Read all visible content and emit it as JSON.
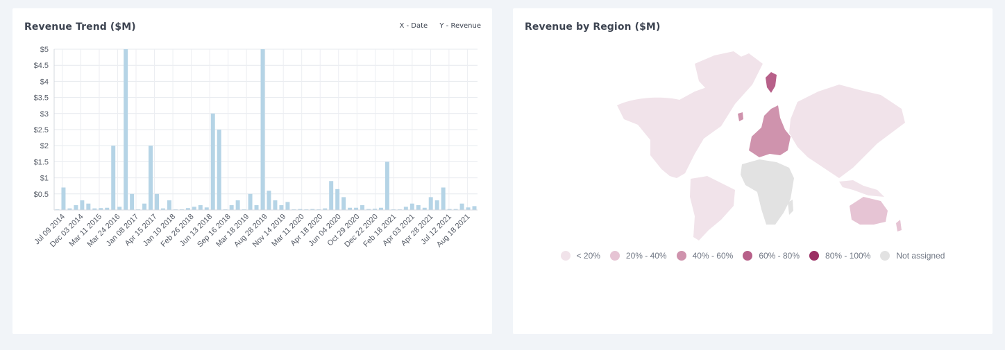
{
  "trend": {
    "title": "Revenue Trend ($M)",
    "x_axis_legend": "X - Date",
    "y_axis_legend": "Y - Revenue"
  },
  "region": {
    "title": "Revenue by Region ($M)",
    "legend": [
      {
        "label": "< 20%",
        "color": "#f1e3ea"
      },
      {
        "label": "20% - 40%",
        "color": "#e6c4d4"
      },
      {
        "label": "40% - 60%",
        "color": "#cf93ad"
      },
      {
        "label": "60% - 80%",
        "color": "#b76089"
      },
      {
        "label": "80% - 100%",
        "color": "#9b2f63"
      },
      {
        "label": "Not assigned",
        "color": "#e2e2e2"
      }
    ]
  },
  "chart_data": [
    {
      "type": "bar",
      "title": "Revenue Trend ($M)",
      "xlabel": "X - Date",
      "ylabel": "Y - Revenue",
      "ylim": [
        0,
        5
      ],
      "y_ticks": [
        "$0.5",
        "$1",
        "$1.5",
        "$2",
        "$2.5",
        "$3",
        "$3.5",
        "$4",
        "$4.5",
        "$5"
      ],
      "x_tick_labels": [
        "Jul 09 2014",
        "Dec 03 2014",
        "Mar 11 2015",
        "Mar 24 2016",
        "Jan 08 2017",
        "Apr 15 2017",
        "Jan 10 2018",
        "Feb 26 2018",
        "Jun 13 2018",
        "Sep 16 2018",
        "Mar 18 2019",
        "Aug 28 2019",
        "Nov 14 2019",
        "Mar 11 2020",
        "Apr 18 2020",
        "Jun 04 2020",
        "Oct 29 2020",
        "Dec 22 2020",
        "Feb 18 2021",
        "Apr 03 2021",
        "Apr 28 2021",
        "Jul 12 2021",
        "Aug 18 2021"
      ],
      "color": "#b5d4e6",
      "grid": true,
      "values": [
        0.02,
        0.7,
        0.05,
        0.15,
        0.3,
        0.2,
        0.05,
        0.06,
        0.07,
        2.0,
        0.1,
        5.0,
        0.5,
        0.02,
        0.2,
        2.0,
        0.5,
        0.05,
        0.3,
        0.02,
        0.02,
        0.06,
        0.1,
        0.15,
        0.08,
        3.0,
        2.5,
        0.02,
        0.15,
        0.3,
        0.02,
        0.5,
        0.15,
        5.0,
        0.6,
        0.3,
        0.15,
        0.25,
        0.02,
        0.03,
        0.02,
        0.03,
        0.02,
        0.05,
        0.9,
        0.65,
        0.4,
        0.07,
        0.07,
        0.15,
        0.03,
        0.04,
        0.07,
        1.5,
        0.02,
        0.02,
        0.1,
        0.2,
        0.15,
        0.07,
        0.4,
        0.3,
        0.7,
        0.03,
        0.03,
        0.2,
        0.08,
        0.12
      ]
    },
    {
      "type": "map",
      "title": "Revenue by Region ($M)",
      "scale": [
        "< 20%",
        "20% - 40%",
        "40% - 60%",
        "60% - 80%",
        "80% - 100%",
        "Not assigned"
      ],
      "regions": [
        {
          "name": "North America",
          "bucket": "< 20%"
        },
        {
          "name": "South America",
          "bucket": "< 20%"
        },
        {
          "name": "Europe",
          "bucket": "40% - 60%"
        },
        {
          "name": "Asia",
          "bucket": "< 20%"
        },
        {
          "name": "Oceania",
          "bucket": "20% - 40%"
        },
        {
          "name": "Africa",
          "bucket": "Not assigned"
        }
      ]
    }
  ]
}
